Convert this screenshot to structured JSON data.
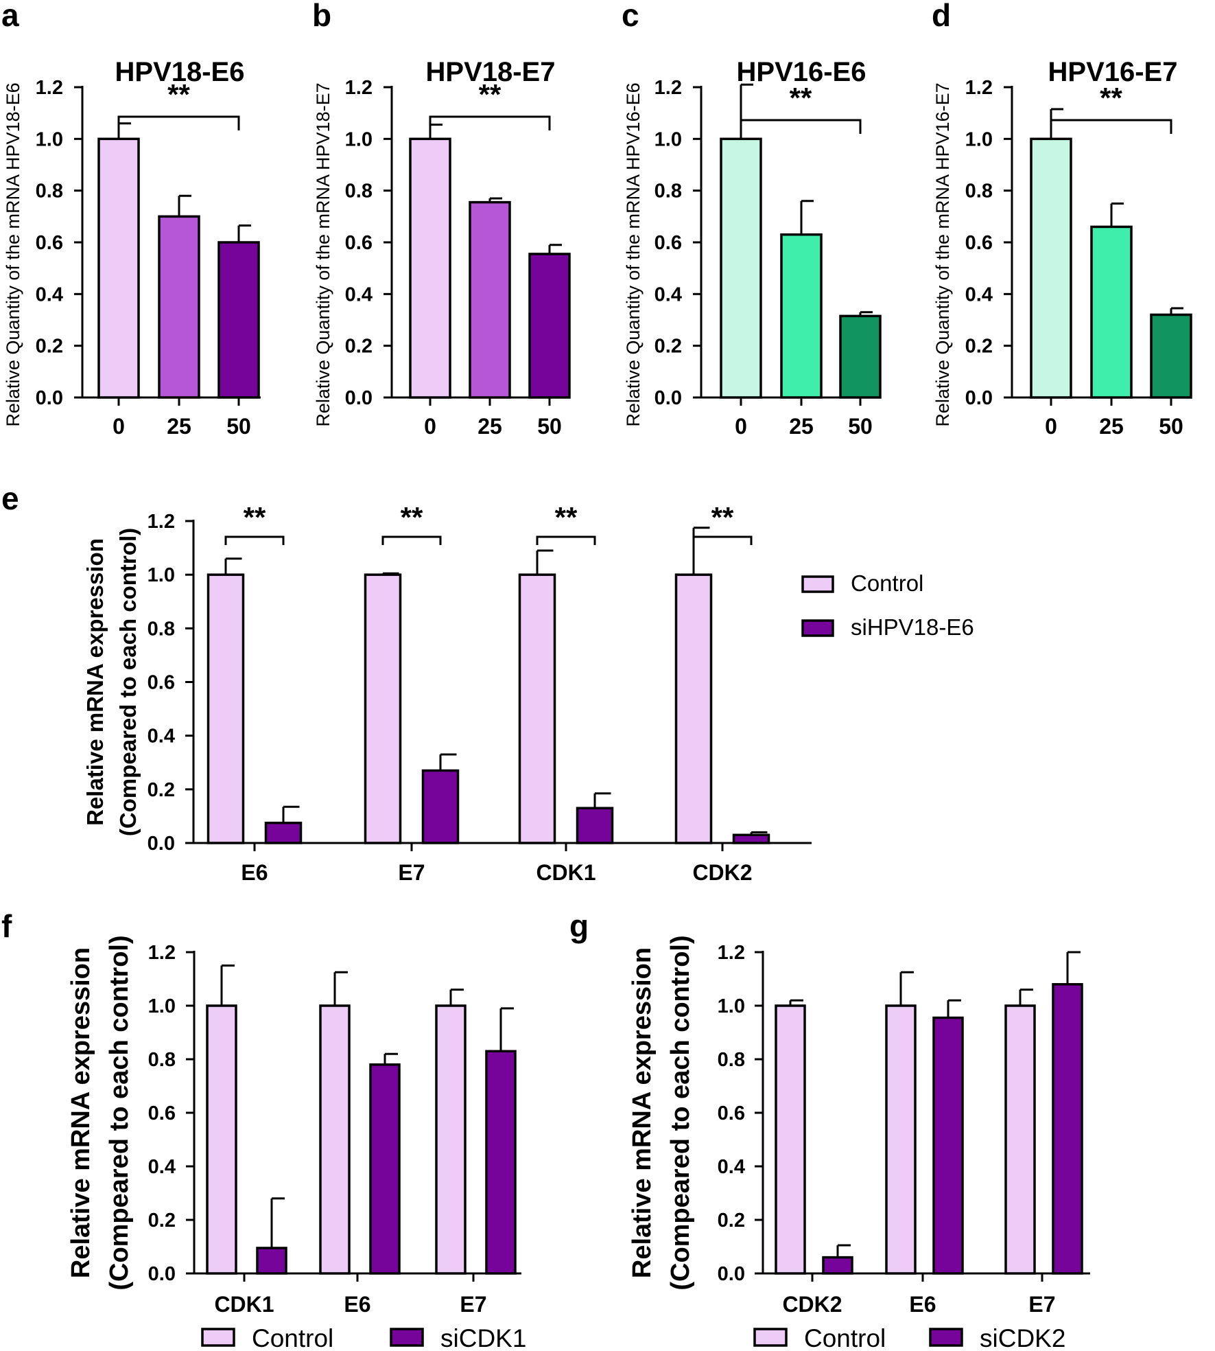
{
  "colors": {
    "purple_light": "#EDCDF7",
    "purple_mid": "#B657D8",
    "purple_dark": "#76049B",
    "green_light": "#C6F7E4",
    "green_mid": "#40EEAC",
    "green_dark": "#11945E"
  },
  "chart_data": [
    {
      "panel": "a",
      "type": "bar",
      "title": "HPV18-E6",
      "ylabel": "Relative Quantity of the mRNA HPV18-E6",
      "xlabel": "",
      "categories": [
        "0",
        "25",
        "50"
      ],
      "values": [
        1.0,
        0.7,
        0.6
      ],
      "errors": [
        0.06,
        0.08,
        0.065
      ],
      "colors": [
        "#EDCDF7",
        "#B657D8",
        "#76049B"
      ],
      "ylim": [
        0,
        1.2
      ],
      "yticks": [
        "0.0",
        "0.2",
        "0.4",
        "0.6",
        "0.8",
        "1.0",
        "1.2"
      ],
      "significance": [
        {
          "from": 0,
          "to": 2,
          "label": "**"
        }
      ]
    },
    {
      "panel": "b",
      "type": "bar",
      "title": "HPV18-E7",
      "ylabel": "Relative Quantity of the mRNA HPV18-E7",
      "xlabel": "",
      "categories": [
        "0",
        "25",
        "50"
      ],
      "values": [
        1.0,
        0.755,
        0.555
      ],
      "errors": [
        0.055,
        0.015,
        0.035
      ],
      "colors": [
        "#EDCDF7",
        "#B657D8",
        "#76049B"
      ],
      "ylim": [
        0,
        1.2
      ],
      "yticks": [
        "0.0",
        "0.2",
        "0.4",
        "0.6",
        "0.8",
        "1.0",
        "1.2"
      ],
      "significance": [
        {
          "from": 0,
          "to": 2,
          "label": "**"
        }
      ]
    },
    {
      "panel": "c",
      "type": "bar",
      "title": "HPV16-E6",
      "ylabel": "Relative Quantity of the mRNA HPV16-E6",
      "xlabel": "",
      "categories": [
        "0",
        "25",
        "50"
      ],
      "values": [
        1.0,
        0.63,
        0.315
      ],
      "errors": [
        0.21,
        0.13,
        0.015
      ],
      "colors": [
        "#C6F7E4",
        "#40EEAC",
        "#11945E"
      ],
      "ylim": [
        0,
        1.2
      ],
      "yticks": [
        "0.0",
        "0.2",
        "0.4",
        "0.6",
        "0.8",
        "1.0",
        "1.2"
      ],
      "significance": [
        {
          "from": 0,
          "to": 2,
          "label": "**"
        }
      ]
    },
    {
      "panel": "d",
      "type": "bar",
      "title": "HPV16-E7",
      "ylabel": "Relative Quantity of the mRNA HPV16-E7",
      "xlabel": "",
      "categories": [
        "0",
        "25",
        "50"
      ],
      "values": [
        1.0,
        0.66,
        0.32
      ],
      "errors": [
        0.115,
        0.09,
        0.025
      ],
      "colors": [
        "#C6F7E4",
        "#40EEAC",
        "#11945E"
      ],
      "ylim": [
        0,
        1.2
      ],
      "yticks": [
        "0.0",
        "0.2",
        "0.4",
        "0.6",
        "0.8",
        "1.0",
        "1.2"
      ],
      "significance": [
        {
          "from": 0,
          "to": 2,
          "label": "**"
        }
      ]
    },
    {
      "panel": "e",
      "type": "bar",
      "title": "",
      "ylabel": [
        "Relative mRNA expression",
        "(Compeared to each control)"
      ],
      "xlabel": "",
      "categories": [
        "E6",
        "E7",
        "CDK1",
        "CDK2"
      ],
      "series": [
        {
          "name": "Control",
          "values": [
            1.0,
            1.0,
            1.0,
            1.0
          ],
          "errors": [
            0.06,
            0.005,
            0.09,
            0.175
          ],
          "color": "#EDCDF7"
        },
        {
          "name": "siHPV18-E6",
          "values": [
            0.075,
            0.27,
            0.13,
            0.03
          ],
          "errors": [
            0.06,
            0.06,
            0.055,
            0.01
          ],
          "color": "#76049B"
        }
      ],
      "ylim": [
        0,
        1.2
      ],
      "yticks": [
        "0.0",
        "0.2",
        "0.4",
        "0.6",
        "0.8",
        "1.0",
        "1.2"
      ],
      "significance": [
        {
          "group": 0,
          "label": "**"
        },
        {
          "group": 1,
          "label": "**"
        },
        {
          "group": 2,
          "label": "**"
        },
        {
          "group": 3,
          "label": "**"
        }
      ],
      "legend_position": "right"
    },
    {
      "panel": "f",
      "type": "bar",
      "title": "",
      "ylabel": [
        "Relative mRNA expression",
        "(Compeared to each control)"
      ],
      "xlabel": "",
      "categories": [
        "CDK1",
        "E6",
        "E7"
      ],
      "series": [
        {
          "name": "Control",
          "values": [
            1.0,
            1.0,
            1.0
          ],
          "errors": [
            0.15,
            0.125,
            0.06
          ],
          "color": "#EDCDF7"
        },
        {
          "name": "siCDK1",
          "values": [
            0.095,
            0.78,
            0.83
          ],
          "errors": [
            0.185,
            0.04,
            0.16
          ],
          "color": "#76049B"
        }
      ],
      "ylim": [
        0,
        1.2
      ],
      "yticks": [
        "0.0",
        "0.2",
        "0.4",
        "0.6",
        "0.8",
        "1.0",
        "1.2"
      ],
      "legend_position": "bottom"
    },
    {
      "panel": "g",
      "type": "bar",
      "title": "",
      "ylabel": [
        "Relative mRNA expression",
        "(Compeared to each control)"
      ],
      "xlabel": "",
      "categories": [
        "CDK2",
        "E6",
        "E7"
      ],
      "series": [
        {
          "name": "Control",
          "values": [
            1.0,
            1.0,
            1.0
          ],
          "errors": [
            0.02,
            0.125,
            0.06
          ],
          "color": "#EDCDF7"
        },
        {
          "name": "siCDK2",
          "values": [
            0.06,
            0.955,
            1.08
          ],
          "errors": [
            0.045,
            0.065,
            0.12
          ],
          "color": "#76049B"
        }
      ],
      "ylim": [
        0,
        1.2
      ],
      "yticks": [
        "0.0",
        "0.2",
        "0.4",
        "0.6",
        "0.8",
        "1.0",
        "1.2"
      ],
      "legend_position": "bottom"
    }
  ]
}
